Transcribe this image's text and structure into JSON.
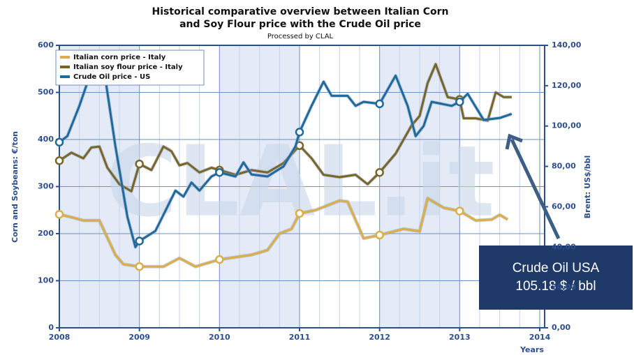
{
  "chart_data": {
    "type": "line",
    "title": [
      "Historical comparative overview between Italian Corn",
      "and Soy Flour price with the Crude Oil price"
    ],
    "subtitle": "Processed by CLAL",
    "watermark": "CLAL.it",
    "xlabel": "Years",
    "ylabel": "Corn and Soybeans: €/ton",
    "y2label": "Brent: US$/bbl",
    "annotation": [
      "Crude Oil USA",
      "105.18 $ / bbl"
    ],
    "xlim": [
      2008,
      2014
    ],
    "xticks": [
      2008,
      2009,
      2010,
      2011,
      2012,
      2013,
      2014
    ],
    "ylim": [
      0,
      600
    ],
    "yticks": [
      0,
      100,
      200,
      300,
      400,
      500,
      600
    ],
    "y2lim": [
      0,
      140
    ],
    "y2ticks": [
      {
        "value": 0,
        "label": "0,00"
      },
      {
        "value": 20,
        "label": "20,00"
      },
      {
        "value": 40,
        "label": "40,00"
      },
      {
        "value": 60,
        "label": "60,00"
      },
      {
        "value": 80,
        "label": "80,00"
      },
      {
        "value": 100,
        "label": "100,00"
      },
      {
        "value": 120,
        "label": "120,00"
      },
      {
        "value": 140,
        "label": "140,00"
      }
    ],
    "grid": true,
    "legend": "top-left",
    "series": [
      {
        "name": "Italian corn price - Italy",
        "color": "#dcae45",
        "x": [
          2008,
          2008.15,
          2008.3,
          2008.5,
          2008.7,
          2008.8,
          2009,
          2009.3,
          2009.5,
          2009.7,
          2009.9,
          2010,
          2010.4,
          2010.6,
          2010.75,
          2010.9,
          2011,
          2011.2,
          2011.5,
          2011.6,
          2011.8,
          2012,
          2012.3,
          2012.5,
          2012.6,
          2012.8,
          2013,
          2013.2,
          2013.4,
          2013.5,
          2013.6
        ],
        "values": [
          241,
          235,
          228,
          228,
          155,
          135,
          130,
          130,
          148,
          130,
          140,
          145,
          155,
          165,
          200,
          210,
          243,
          250,
          270,
          268,
          190,
          197,
          210,
          205,
          275,
          255,
          248,
          228,
          230,
          240,
          230
        ]
      },
      {
        "name": "Italian soy flour price - Italy",
        "color": "#7a6528",
        "x": [
          2008,
          2008.15,
          2008.3,
          2008.4,
          2008.5,
          2008.6,
          2008.75,
          2008.9,
          2009,
          2009.15,
          2009.3,
          2009.4,
          2009.5,
          2009.6,
          2009.75,
          2009.9,
          2010,
          2010.2,
          2010.4,
          2010.6,
          2010.8,
          2011,
          2011.15,
          2011.3,
          2011.5,
          2011.7,
          2011.85,
          2012,
          2012.2,
          2012.4,
          2012.5,
          2012.6,
          2012.7,
          2012.85,
          2013,
          2013.05,
          2013.2,
          2013.35,
          2013.45,
          2013.55,
          2013.65
        ],
        "values": [
          355,
          372,
          360,
          383,
          385,
          340,
          305,
          290,
          348,
          335,
          385,
          375,
          345,
          350,
          330,
          340,
          335,
          325,
          335,
          330,
          350,
          387,
          360,
          325,
          320,
          325,
          305,
          330,
          370,
          430,
          450,
          520,
          560,
          490,
          485,
          445,
          445,
          440,
          500,
          490,
          490
        ]
      },
      {
        "name": "Crude Oil price - US",
        "color": "#1f6a9a",
        "axis": "y2",
        "x": [
          2008,
          2008.1,
          2008.25,
          2008.45,
          2008.55,
          2008.7,
          2008.85,
          2008.95,
          2009,
          2009.2,
          2009.35,
          2009.45,
          2009.55,
          2009.65,
          2009.75,
          2009.9,
          2010,
          2010.2,
          2010.3,
          2010.4,
          2010.6,
          2010.8,
          2010.95,
          2011,
          2011.15,
          2011.3,
          2011.4,
          2011.6,
          2011.7,
          2011.8,
          2012,
          2012.1,
          2012.2,
          2012.35,
          2012.45,
          2012.55,
          2012.65,
          2012.9,
          2013,
          2013.1,
          2013.3,
          2013.5,
          2013.65
        ],
        "values": [
          92,
          95,
          110,
          133,
          130,
          90,
          55,
          40,
          43,
          48,
          60,
          68,
          65,
          72,
          68,
          75,
          77,
          75,
          82,
          76,
          75,
          80,
          90,
          97,
          110,
          122,
          115,
          115,
          110,
          112,
          111,
          118,
          125,
          110,
          95,
          100,
          112,
          110,
          112,
          116,
          103,
          104,
          106
        ]
      }
    ]
  }
}
